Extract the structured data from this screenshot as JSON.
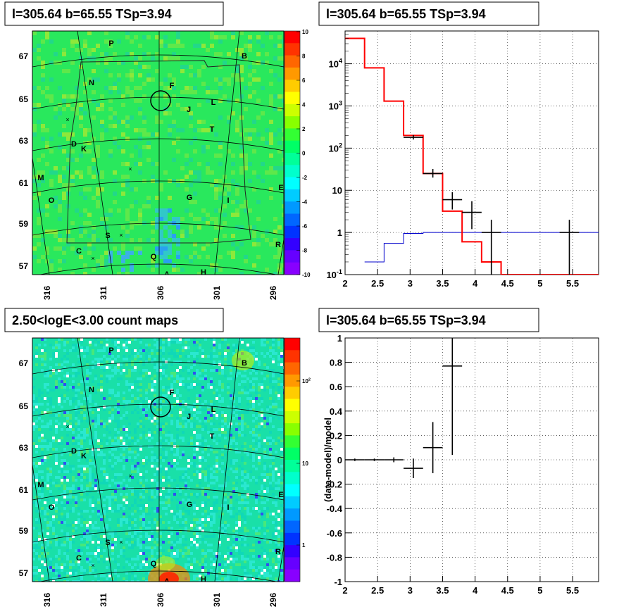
{
  "panels": {
    "tl": {
      "title": "l=305.64 b=65.55 TSp=3.94"
    },
    "tr": {
      "title": "l=305.64 b=65.55 TSp=3.94"
    },
    "bl": {
      "title": "2.50<logE<3.00 count maps"
    },
    "br": {
      "title": "l=305.64 b=65.55 TSp=3.94"
    }
  },
  "map_axes": {
    "x_ticks": [
      "316",
      "311",
      "306",
      "301",
      "296"
    ],
    "y_ticks": [
      "67",
      "65",
      "63",
      "61",
      "59",
      "57"
    ]
  },
  "source_labels": [
    "P",
    "B",
    "N",
    "F",
    "J",
    "L",
    "T",
    "D",
    "K",
    "M",
    "E",
    "G",
    "I",
    "O",
    "S",
    "C",
    "Q",
    "R",
    "A",
    "H"
  ],
  "colorbar_tl": {
    "ticks": [
      "10",
      "8",
      "6",
      "4",
      "2",
      "0",
      "-2",
      "-4",
      "-6",
      "-8",
      "-10"
    ]
  },
  "colorbar_bl": {
    "ticks": [
      "10^2",
      "10",
      "1"
    ]
  },
  "chart_data": [
    {
      "type": "line",
      "panel": "spectrum",
      "log_y": true,
      "xlim": [
        2,
        5.9
      ],
      "ylim": [
        0.1,
        60000
      ],
      "x_ticks": [
        "2",
        "2.5",
        "3",
        "3.5",
        "4",
        "4.5",
        "5",
        "5.5"
      ],
      "y_ticks": [
        "10^4",
        "10^3",
        "10^2",
        "10",
        "1",
        "10^-1"
      ],
      "grid": true,
      "series": [
        {
          "style": "red-step",
          "edges": [
            2.0,
            2.3,
            2.6,
            2.9,
            3.2,
            3.5,
            3.8,
            4.1,
            4.4,
            5.9
          ],
          "values": [
            40000,
            8000,
            1300,
            200,
            25,
            3.2,
            0.6,
            0.2,
            0.1
          ]
        },
        {
          "style": "blue-step",
          "edges": [
            2.3,
            2.6,
            2.9,
            3.2,
            5.9
          ],
          "values": [
            0.2,
            0.55,
            0.95,
            1.0
          ]
        },
        {
          "style": "black-errorbar",
          "points": [
            {
              "x": 3.05,
              "y": 180,
              "xerr": 0.15,
              "ylo": 160,
              "yhi": 205
            },
            {
              "x": 3.35,
              "y": 25,
              "xerr": 0.15,
              "ylo": 20,
              "yhi": 32
            },
            {
              "x": 3.65,
              "y": 6,
              "xerr": 0.15,
              "ylo": 3.5,
              "yhi": 9
            },
            {
              "x": 3.95,
              "y": 3,
              "xerr": 0.15,
              "ylo": 1.2,
              "yhi": 5.5
            },
            {
              "x": 4.25,
              "y": 1,
              "xerr": 0.15,
              "ylo": 0.1,
              "yhi": 2
            },
            {
              "x": 5.45,
              "y": 1,
              "xerr": 0.15,
              "ylo": 0.1,
              "yhi": 2
            }
          ]
        }
      ]
    },
    {
      "type": "scatter",
      "panel": "residuals",
      "xlim": [
        2,
        5.9
      ],
      "ylim": [
        -1,
        1
      ],
      "ylabel": "(data-model)/model",
      "x_ticks": [
        "2",
        "2.5",
        "3",
        "3.5",
        "4",
        "4.5",
        "5",
        "5.5"
      ],
      "y_ticks": [
        "1",
        "0.8",
        "0.6",
        "0.4",
        "0.2",
        "0",
        "-0.2",
        "-0.4",
        "-0.6",
        "-0.8",
        "-1"
      ],
      "grid": true,
      "points": [
        {
          "x": 2.15,
          "y": 0.0,
          "xerr": 0.15,
          "yerr": 0.01
        },
        {
          "x": 2.45,
          "y": 0.0,
          "xerr": 0.15,
          "yerr": 0.01
        },
        {
          "x": 2.75,
          "y": 0.0,
          "xerr": 0.15,
          "yerr": 0.02
        },
        {
          "x": 3.05,
          "y": -0.07,
          "xerr": 0.15,
          "yerr": 0.08
        },
        {
          "x": 3.35,
          "y": 0.1,
          "xerr": 0.15,
          "yerr": 0.21
        },
        {
          "x": 3.65,
          "y": 0.77,
          "xerr": 0.15,
          "yerr": 0.73
        }
      ]
    }
  ]
}
